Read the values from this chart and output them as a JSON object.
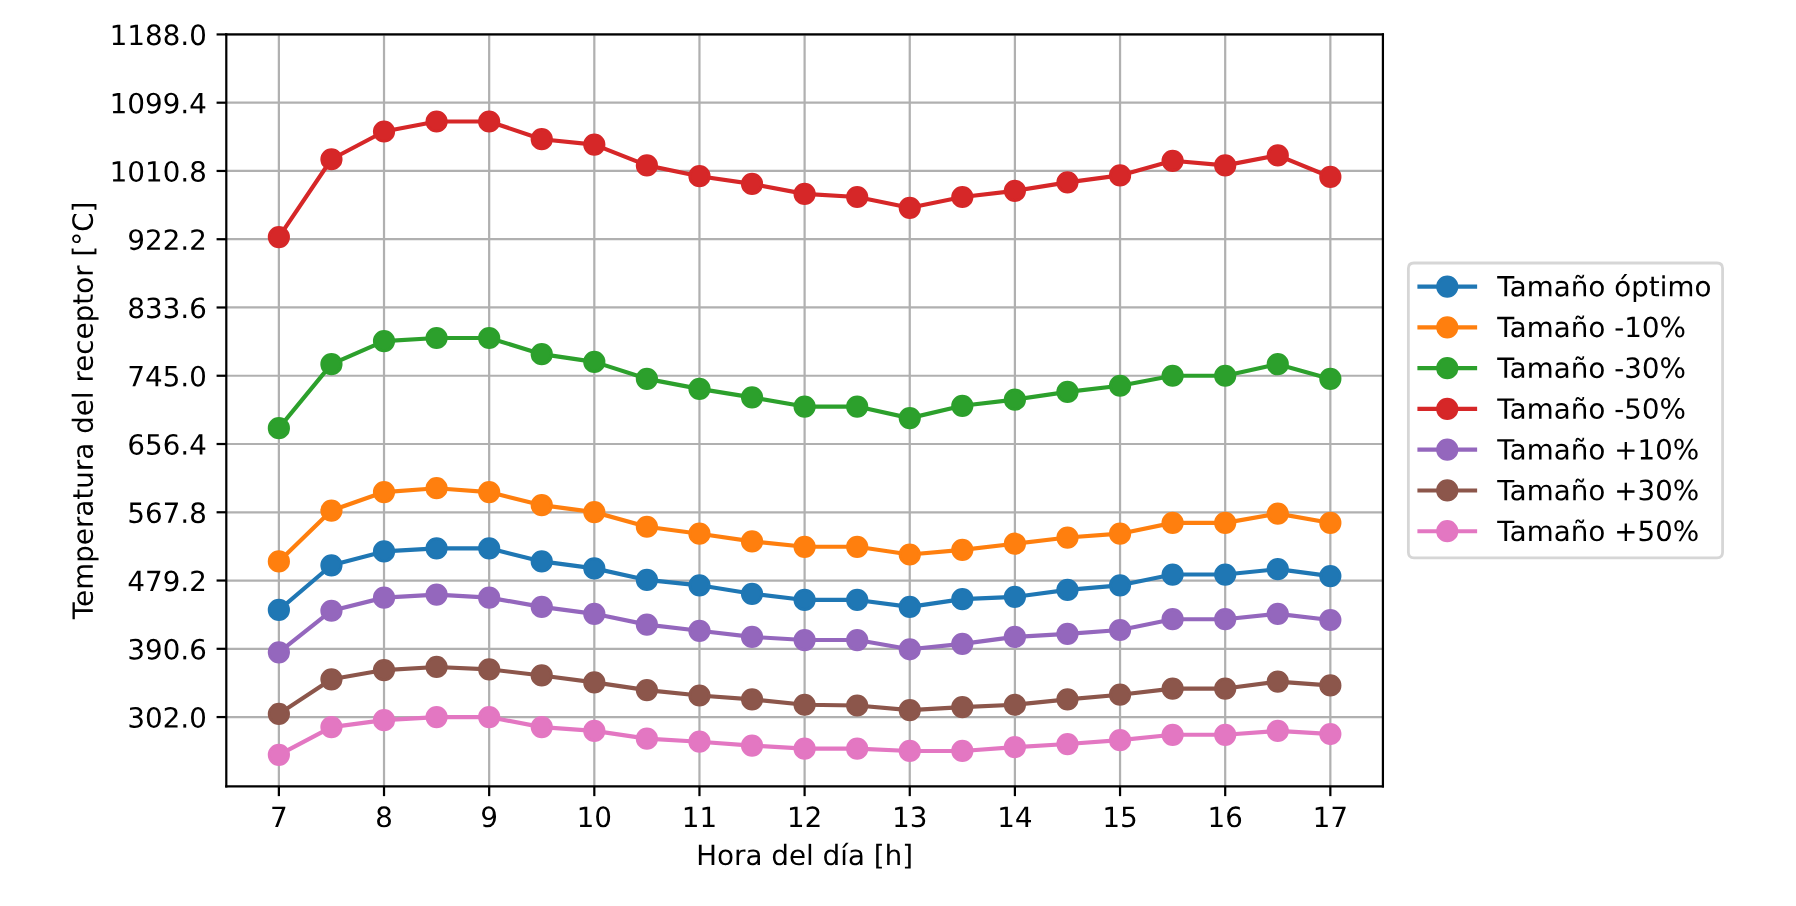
{
  "chart_data": {
    "type": "line",
    "xlabel": "Hora del día [h]",
    "ylabel": "Temperatura del receptor [°C]",
    "x": [
      7,
      7.5,
      8,
      8.5,
      9,
      9.5,
      10,
      10.5,
      11,
      11.5,
      12,
      12.5,
      13,
      13.5,
      14,
      14.5,
      15,
      15.5,
      16,
      16.5,
      17
    ],
    "xlim": [
      6.5,
      17.5
    ],
    "xticks": [
      7,
      8,
      9,
      10,
      11,
      12,
      13,
      14,
      15,
      16,
      17
    ],
    "ylim": [
      212,
      1188
    ],
    "yticks": [
      {
        "value": 302,
        "label": "302.0"
      },
      {
        "value": 390.6,
        "label": "390.6"
      },
      {
        "value": 479.2,
        "label": "479.2"
      },
      {
        "value": 567.8,
        "label": "567.8"
      },
      {
        "value": 656.4,
        "label": "656.4"
      },
      {
        "value": 745,
        "label": "745.0"
      },
      {
        "value": 833.6,
        "label": "833.6"
      },
      {
        "value": 922.2,
        "label": "922.2"
      },
      {
        "value": 1010.8,
        "label": "1010.8"
      },
      {
        "value": 1099.4,
        "label": "1099.4"
      },
      {
        "value": 1188,
        "label": "1188.0"
      }
    ],
    "grid": true,
    "legend": "right",
    "marker": "circle",
    "line_style": "solid",
    "series": [
      {
        "name": "Tamaño óptimo",
        "color": "#1f77b4",
        "values": [
          441,
          499,
          517,
          521,
          521,
          504,
          495,
          480,
          473,
          462,
          454,
          454,
          445,
          455,
          458,
          467,
          473,
          487,
          487,
          494,
          485
        ]
      },
      {
        "name": "Tamaño -10%",
        "color": "#ff7f0e",
        "values": [
          504,
          570,
          594,
          599,
          594,
          577,
          568,
          549,
          540,
          530,
          523,
          523,
          513,
          519,
          527,
          535,
          540,
          554,
          554,
          566,
          554
        ]
      },
      {
        "name": "Tamaño -30%",
        "color": "#2ca02c",
        "values": [
          677,
          760,
          790,
          794,
          794,
          773,
          763,
          741,
          728,
          717,
          705,
          705,
          690,
          706,
          714,
          724,
          732,
          745,
          745,
          760,
          741
        ]
      },
      {
        "name": "Tamaño -50%",
        "color": "#d62728",
        "values": [
          925,
          1026,
          1062,
          1075,
          1075,
          1052,
          1045,
          1018,
          1004,
          994,
          981,
          977,
          963,
          977,
          985,
          996,
          1005,
          1024,
          1018,
          1031,
          1003
        ]
      },
      {
        "name": "Tamaño +10%",
        "color": "#9467bd",
        "values": [
          386,
          440,
          457,
          461,
          457,
          445,
          436,
          422,
          414,
          406,
          402,
          402,
          390,
          397,
          406,
          410,
          415,
          429,
          429,
          436,
          428
        ]
      },
      {
        "name": "Tamaño +30%",
        "color": "#8c564b",
        "values": [
          306,
          351,
          363,
          367,
          364,
          356,
          347,
          337,
          330,
          325,
          318,
          317,
          311,
          315,
          318,
          325,
          331,
          339,
          339,
          348,
          343
        ]
      },
      {
        "name": "Tamaño +50%",
        "color": "#e377c2",
        "values": [
          253,
          289,
          298,
          302,
          302,
          289,
          284,
          274,
          270,
          265,
          261,
          261,
          258,
          258,
          263,
          267,
          272,
          279,
          279,
          284,
          280
        ]
      }
    ]
  }
}
